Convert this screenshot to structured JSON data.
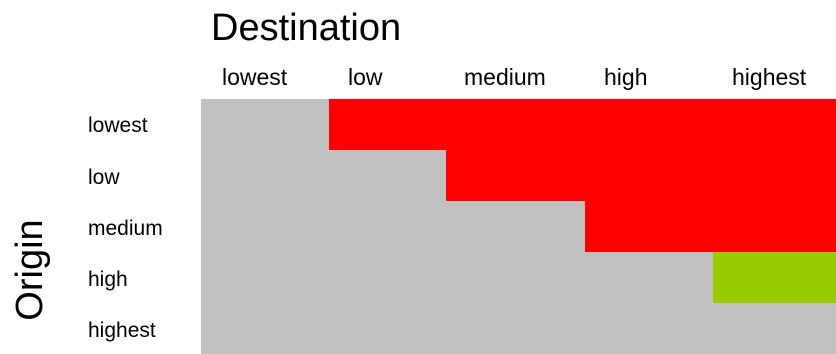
{
  "destination_title": "Destination",
  "origin_title": "Origin",
  "columns": [
    "lowest",
    "low",
    "medium",
    "high",
    "highest"
  ],
  "rows": [
    "lowest",
    "low",
    "medium",
    "high",
    "highest"
  ],
  "colors": {
    "background": "#c0c0c0",
    "red": "#ff0000",
    "green": "#99cc00"
  },
  "matrix": [
    [
      "gray",
      "red",
      "red",
      "red",
      "red"
    ],
    [
      "gray",
      "gray",
      "red",
      "red",
      "red"
    ],
    [
      "gray",
      "gray",
      "gray",
      "red",
      "red"
    ],
    [
      "gray",
      "gray",
      "gray",
      "gray",
      "green"
    ],
    [
      "gray",
      "gray",
      "gray",
      "gray",
      "gray"
    ]
  ]
}
